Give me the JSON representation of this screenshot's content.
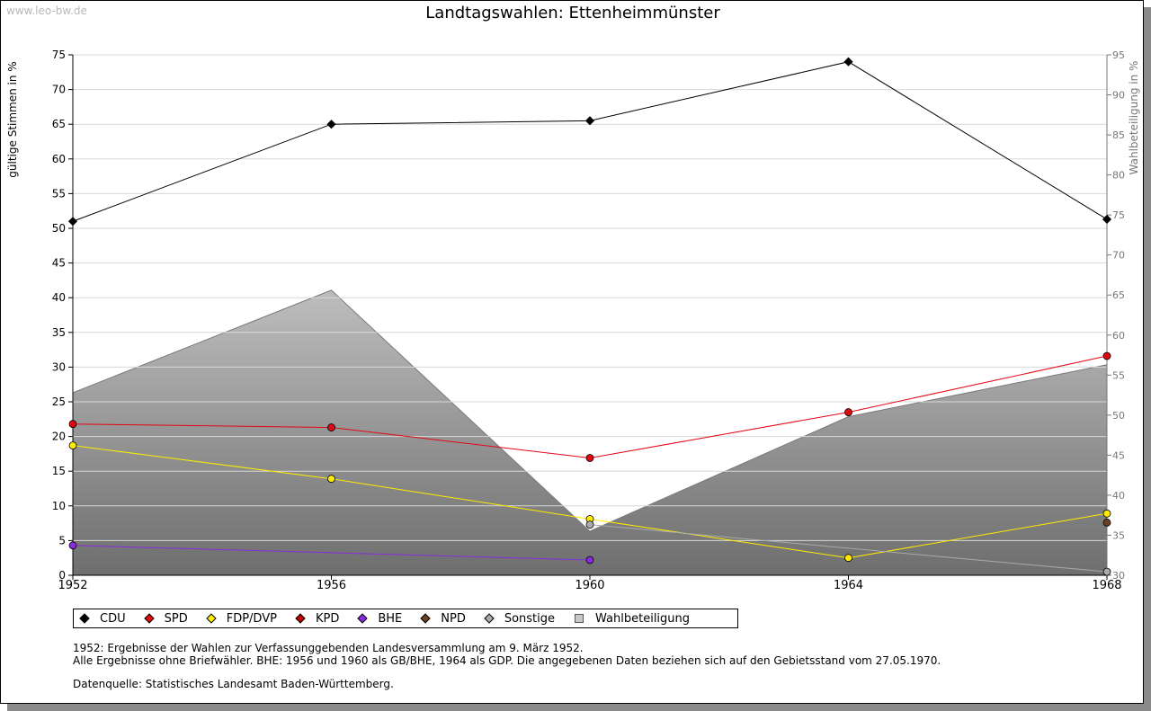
{
  "watermark": "www.leo-bw.de",
  "title": "Landtagswahlen: Ettenheimmünster",
  "notes": [
    "1952: Ergebnisse der Wahlen zur Verfassunggebenden Landesversammlung am 9. März 1952.",
    "Alle Ergebnisse ohne Briefwähler. BHE: 1956 und 1960 als GB/BHE, 1964 als GDP. Die angegebenen Daten beziehen sich auf den Gebietsstand vom 27.05.1970."
  ],
  "source": "Datenquelle: Statistisches Landesamt Baden-Württemberg.",
  "chart_data": {
    "type": "line",
    "title": "Landtagswahlen: Ettenheimmünster",
    "ylabel": "gültige Stimmen in %",
    "y2label": "Wahlbeteiligung in %",
    "x": [
      1952,
      1956,
      1960,
      1964,
      1968
    ],
    "x_ticks": [
      "1952",
      "1956",
      "1960",
      "1964",
      "1968"
    ],
    "ylim": [
      0,
      75
    ],
    "y_ticks": [
      "0",
      "5",
      "10",
      "15",
      "20",
      "25",
      "30",
      "35",
      "40",
      "45",
      "50",
      "55",
      "60",
      "65",
      "70",
      "75"
    ],
    "y2lim": [
      30,
      95
    ],
    "y2_ticks": [
      "30",
      "35",
      "40",
      "45",
      "50",
      "55",
      "60",
      "65",
      "70",
      "75",
      "80",
      "85",
      "90",
      "95"
    ],
    "grid": true,
    "legend_position": "bottom",
    "series": [
      {
        "name": "CDU",
        "color": "#000000",
        "values": [
          51.0,
          65.0,
          65.5,
          74.0,
          51.3
        ]
      },
      {
        "name": "SPD",
        "color": "#e30613",
        "values": [
          21.8,
          21.3,
          16.9,
          23.5,
          31.6
        ]
      },
      {
        "name": "FDP/DVP",
        "color": "#ffed00",
        "values": [
          18.7,
          13.9,
          8.1,
          2.5,
          8.9
        ]
      },
      {
        "name": "KPD",
        "color": "#c00000",
        "values": [
          null,
          null,
          null,
          null,
          null
        ]
      },
      {
        "name": "BHE",
        "color": "#8a2be2",
        "values": [
          4.3,
          null,
          2.2,
          null,
          null
        ]
      },
      {
        "name": "NPD",
        "color": "#6b4226",
        "values": [
          null,
          null,
          null,
          null,
          7.6
        ]
      },
      {
        "name": "Sonstige",
        "color": "#aaaaaa",
        "values": [
          null,
          null,
          7.3,
          null,
          0.5
        ]
      }
    ],
    "turnout": {
      "name": "Wahlbeteiligung",
      "axis": "right",
      "values": [
        52.8,
        65.6,
        35.5,
        49.8,
        56.3
      ]
    }
  }
}
